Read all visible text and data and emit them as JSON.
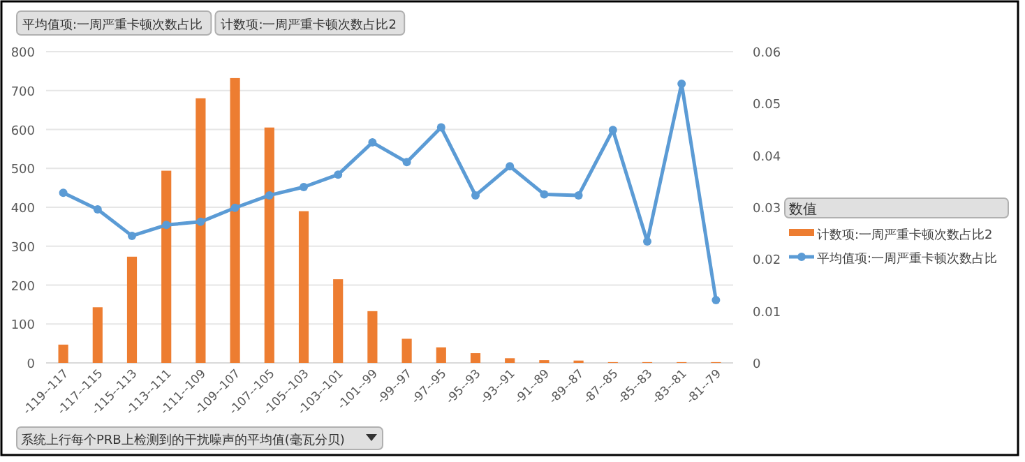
{
  "chart_data": {
    "type": "bar",
    "xlabel": "系统上行每个PRB上检测到的干扰噪声的平均值(毫瓦分贝)",
    "legend_title": "数值",
    "annotations": [
      "平均值项:一周严重卡顿次数占比",
      "计数项:一周严重卡顿次数占比2"
    ],
    "categories": [
      "-119--117",
      "-117--115",
      "-115--113",
      "-113--111",
      "-111--109",
      "-109--107",
      "-107--105",
      "-105--103",
      "-103--101",
      "-101--99",
      "-99--97",
      "-97--95",
      "-95--93",
      "-93--91",
      "-91--89",
      "-89--87",
      "-87--85",
      "-85--83",
      "-83--81",
      "-81--79"
    ],
    "series": [
      {
        "name": "计数项:一周严重卡顿次数占比2",
        "color": "#ed7d31",
        "values": [
          47,
          143,
          273,
          494,
          680,
          732,
          605,
          390,
          215,
          133,
          62,
          40,
          25,
          12,
          7,
          6,
          2,
          2,
          2,
          2
        ]
      },
      {
        "name": "平均值项:一周严重卡顿次数占比",
        "type": "line",
        "axis": "y2",
        "color": "#5b9bd5",
        "marker": "circle",
        "values": [
          0.0328,
          0.0296,
          0.0245,
          0.0266,
          0.0272,
          0.0299,
          0.0323,
          0.0339,
          0.0363,
          0.0425,
          0.0387,
          0.0454,
          0.0323,
          0.0379,
          0.0325,
          0.0323,
          0.0449,
          0.0234,
          0.0538,
          0.0121
        ]
      }
    ],
    "ylim": [
      0,
      800
    ],
    "yticks": [
      0,
      100,
      200,
      300,
      400,
      500,
      600,
      700,
      800
    ],
    "y2lim": [
      0,
      0.06
    ],
    "y2ticks": [
      0,
      0.01,
      0.02,
      0.03,
      0.04,
      0.05,
      0.06
    ],
    "grid": "y",
    "legend": "right"
  }
}
